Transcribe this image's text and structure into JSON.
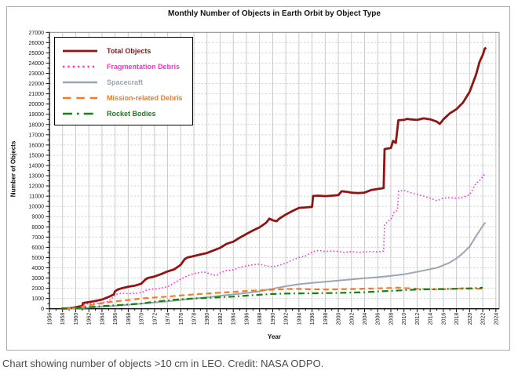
{
  "figure": {
    "title": "Monthly Number of Objects in Earth Orbit by Object Type",
    "caption": "Chart showing number of objects >10 cm in LEO. Credit: NASA ODPO."
  },
  "chart_data": {
    "type": "line",
    "title": "Monthly Number of Objects in Earth Orbit by Object Type",
    "xlabel": "Year",
    "ylabel": "Number of Objects",
    "x_range": [
      1956,
      2024.5
    ],
    "y_range": [
      0,
      27000
    ],
    "x_tick_first": 1956,
    "x_tick_last": 2024,
    "x_tick_step": 2,
    "y_tick_step": 1000,
    "grid": true,
    "legend_position": "top-left",
    "series": [
      {
        "id": "total",
        "name": "Total Objects",
        "color": "#8e1511",
        "style": "solid",
        "width": 2.8,
        "points": [
          [
            1957.8,
            10
          ],
          [
            1958,
            20
          ],
          [
            1959,
            35
          ],
          [
            1960,
            150
          ],
          [
            1960.8,
            250
          ],
          [
            1961,
            300
          ],
          [
            1961.1,
            560
          ],
          [
            1962,
            650
          ],
          [
            1963,
            760
          ],
          [
            1964,
            900
          ],
          [
            1965,
            1150
          ],
          [
            1965.8,
            1400
          ],
          [
            1966,
            1720
          ],
          [
            1966.5,
            1900
          ],
          [
            1967,
            2000
          ],
          [
            1968,
            2150
          ],
          [
            1969,
            2250
          ],
          [
            1970,
            2450
          ],
          [
            1970.6,
            2850
          ],
          [
            1971,
            3000
          ],
          [
            1972,
            3150
          ],
          [
            1973,
            3380
          ],
          [
            1974,
            3650
          ],
          [
            1975,
            3850
          ],
          [
            1976,
            4300
          ],
          [
            1976.6,
            4850
          ],
          [
            1977,
            5000
          ],
          [
            1978,
            5150
          ],
          [
            1979,
            5300
          ],
          [
            1980,
            5450
          ],
          [
            1981,
            5700
          ],
          [
            1982,
            5950
          ],
          [
            1983,
            6350
          ],
          [
            1984,
            6550
          ],
          [
            1985,
            6950
          ],
          [
            1986,
            7300
          ],
          [
            1987,
            7650
          ],
          [
            1988,
            7950
          ],
          [
            1989,
            8400
          ],
          [
            1989.5,
            8800
          ],
          [
            1990,
            8650
          ],
          [
            1990.6,
            8550
          ],
          [
            1991,
            8800
          ],
          [
            1992,
            9200
          ],
          [
            1993,
            9550
          ],
          [
            1994,
            9850
          ],
          [
            1995,
            9900
          ],
          [
            1996,
            9950
          ],
          [
            1996.15,
            11020
          ],
          [
            1997,
            11050
          ],
          [
            1998,
            11000
          ],
          [
            1999,
            11050
          ],
          [
            2000,
            11100
          ],
          [
            2000.5,
            11480
          ],
          [
            2001,
            11450
          ],
          [
            2002,
            11350
          ],
          [
            2003,
            11300
          ],
          [
            2004,
            11350
          ],
          [
            2005,
            11600
          ],
          [
            2006,
            11700
          ],
          [
            2006.9,
            11780
          ],
          [
            2007.05,
            15600
          ],
          [
            2007.5,
            15650
          ],
          [
            2008,
            15700
          ],
          [
            2008.35,
            16400
          ],
          [
            2008.75,
            16200
          ],
          [
            2009.15,
            18420
          ],
          [
            2010,
            18450
          ],
          [
            2010.5,
            18550
          ],
          [
            2011,
            18500
          ],
          [
            2012,
            18450
          ],
          [
            2013,
            18600
          ],
          [
            2014,
            18500
          ],
          [
            2015,
            18280
          ],
          [
            2015.45,
            18060
          ],
          [
            2015.7,
            18250
          ],
          [
            2016,
            18500
          ],
          [
            2017,
            19100
          ],
          [
            2018,
            19500
          ],
          [
            2019,
            20150
          ],
          [
            2020,
            21200
          ],
          [
            2021,
            22900
          ],
          [
            2021.5,
            24100
          ],
          [
            2022,
            24800
          ],
          [
            2022.3,
            25400
          ],
          [
            2022.5,
            25520
          ]
        ]
      },
      {
        "id": "fragmentation",
        "name": "Fragmentation Debris",
        "color": "#ff2fd2",
        "style": "dotted",
        "width": 1.6,
        "points": [
          [
            1958,
            0
          ],
          [
            1959,
            20
          ],
          [
            1960,
            50
          ],
          [
            1961,
            120
          ],
          [
            1961.2,
            420
          ],
          [
            1962,
            480
          ],
          [
            1963,
            530
          ],
          [
            1964,
            600
          ],
          [
            1965,
            720
          ],
          [
            1965.9,
            1250
          ],
          [
            1966,
            1400
          ],
          [
            1967,
            1520
          ],
          [
            1968,
            1480
          ],
          [
            1969,
            1520
          ],
          [
            1970,
            1580
          ],
          [
            1970.7,
            1800
          ],
          [
            1971,
            1850
          ],
          [
            1972,
            1930
          ],
          [
            1973,
            2020
          ],
          [
            1974,
            2150
          ],
          [
            1975,
            2520
          ],
          [
            1976,
            2900
          ],
          [
            1977,
            3200
          ],
          [
            1978,
            3450
          ],
          [
            1979,
            3550
          ],
          [
            1979.5,
            3600
          ],
          [
            1980,
            3500
          ],
          [
            1981,
            3300
          ],
          [
            1981.5,
            3250
          ],
          [
            1982,
            3500
          ],
          [
            1983,
            3750
          ],
          [
            1984,
            3800
          ],
          [
            1985,
            4050
          ],
          [
            1986,
            4200
          ],
          [
            1987,
            4300
          ],
          [
            1988,
            4350
          ],
          [
            1989,
            4200
          ],
          [
            1990,
            4100
          ],
          [
            1991,
            4250
          ],
          [
            1992,
            4450
          ],
          [
            1993,
            4750
          ],
          [
            1994,
            5000
          ],
          [
            1995,
            5150
          ],
          [
            1996.2,
            5600
          ],
          [
            1997,
            5700
          ],
          [
            1998,
            5600
          ],
          [
            1999,
            5650
          ],
          [
            2000,
            5600
          ],
          [
            2001,
            5500
          ],
          [
            2002,
            5600
          ],
          [
            2003,
            5500
          ],
          [
            2004,
            5550
          ],
          [
            2005,
            5600
          ],
          [
            2006,
            5550
          ],
          [
            2006.9,
            5650
          ],
          [
            2007.05,
            8200
          ],
          [
            2007.6,
            8580
          ],
          [
            2008,
            8700
          ],
          [
            2008.5,
            9450
          ],
          [
            2009,
            9600
          ],
          [
            2009.2,
            11500
          ],
          [
            2010,
            11550
          ],
          [
            2011,
            11350
          ],
          [
            2012,
            11150
          ],
          [
            2013,
            11000
          ],
          [
            2014,
            10800
          ],
          [
            2015,
            10550
          ],
          [
            2016,
            10800
          ],
          [
            2017,
            10850
          ],
          [
            2018,
            10800
          ],
          [
            2019,
            10900
          ],
          [
            2020,
            11150
          ],
          [
            2020.7,
            11900
          ],
          [
            2021,
            12300
          ],
          [
            2021.5,
            12500
          ],
          [
            2022,
            12900
          ],
          [
            2022.4,
            13250
          ]
        ]
      },
      {
        "id": "spacecraft",
        "name": "Spacecraft",
        "color": "#9aa6b6",
        "style": "solid",
        "width": 2,
        "points": [
          [
            1957.8,
            5
          ],
          [
            1960,
            40
          ],
          [
            1962,
            110
          ],
          [
            1964,
            190
          ],
          [
            1966,
            290
          ],
          [
            1968,
            390
          ],
          [
            1970,
            490
          ],
          [
            1972,
            610
          ],
          [
            1974,
            730
          ],
          [
            1976,
            860
          ],
          [
            1978,
            990
          ],
          [
            1980,
            1120
          ],
          [
            1982,
            1270
          ],
          [
            1984,
            1400
          ],
          [
            1986,
            1540
          ],
          [
            1988,
            1700
          ],
          [
            1990,
            1950
          ],
          [
            1992,
            2200
          ],
          [
            1994,
            2400
          ],
          [
            1996,
            2520
          ],
          [
            1998,
            2640
          ],
          [
            2000,
            2760
          ],
          [
            2002,
            2870
          ],
          [
            2004,
            2980
          ],
          [
            2006,
            3080
          ],
          [
            2008,
            3220
          ],
          [
            2010,
            3360
          ],
          [
            2012,
            3600
          ],
          [
            2014,
            3870
          ],
          [
            2015,
            4000
          ],
          [
            2016,
            4250
          ],
          [
            2017,
            4520
          ],
          [
            2018,
            4920
          ],
          [
            2019,
            5440
          ],
          [
            2020,
            6080
          ],
          [
            2021,
            7100
          ],
          [
            2022,
            8100
          ],
          [
            2022.4,
            8430
          ]
        ]
      },
      {
        "id": "mission-debris",
        "name": "Mission-related Debris",
        "color": "#f87a1c",
        "style": "dashed",
        "width": 2.2,
        "points": [
          [
            1958,
            5
          ],
          [
            1960,
            80
          ],
          [
            1962,
            330
          ],
          [
            1964,
            540
          ],
          [
            1966,
            730
          ],
          [
            1968,
            850
          ],
          [
            1970,
            1000
          ],
          [
            1972,
            1100
          ],
          [
            1974,
            1190
          ],
          [
            1976,
            1300
          ],
          [
            1978,
            1400
          ],
          [
            1980,
            1490
          ],
          [
            1982,
            1570
          ],
          [
            1984,
            1650
          ],
          [
            1986,
            1730
          ],
          [
            1988,
            1800
          ],
          [
            1990,
            1860
          ],
          [
            1992,
            1920
          ],
          [
            1994,
            1940
          ],
          [
            1996,
            1900
          ],
          [
            1998,
            1880
          ],
          [
            2000,
            1900
          ],
          [
            2002,
            1930
          ],
          [
            2004,
            1960
          ],
          [
            2006,
            1990
          ],
          [
            2008,
            2030
          ],
          [
            2009,
            2060
          ],
          [
            2010,
            2020
          ],
          [
            2012,
            1950
          ],
          [
            2014,
            1900
          ],
          [
            2015,
            1890
          ],
          [
            2016,
            1900
          ],
          [
            2018,
            1960
          ],
          [
            2019,
            2000
          ],
          [
            2020,
            1960
          ],
          [
            2021,
            1960
          ],
          [
            2022,
            1980
          ]
        ]
      },
      {
        "id": "rocket-bodies",
        "name": "Rocket Bodies",
        "color": "#128212",
        "style": "dashdot",
        "width": 2.2,
        "points": [
          [
            1957.8,
            5
          ],
          [
            1960,
            60
          ],
          [
            1962,
            150
          ],
          [
            1964,
            260
          ],
          [
            1966,
            340
          ],
          [
            1968,
            410
          ],
          [
            1970,
            510
          ],
          [
            1971,
            600
          ],
          [
            1972,
            690
          ],
          [
            1974,
            810
          ],
          [
            1976,
            930
          ],
          [
            1978,
            1000
          ],
          [
            1980,
            1060
          ],
          [
            1982,
            1130
          ],
          [
            1984,
            1190
          ],
          [
            1986,
            1280
          ],
          [
            1988,
            1370
          ],
          [
            1990,
            1440
          ],
          [
            1992,
            1490
          ],
          [
            1994,
            1500
          ],
          [
            1996,
            1510
          ],
          [
            1998,
            1530
          ],
          [
            2000,
            1550
          ],
          [
            2002,
            1580
          ],
          [
            2004,
            1620
          ],
          [
            2006,
            1690
          ],
          [
            2008,
            1750
          ],
          [
            2010,
            1810
          ],
          [
            2012,
            1880
          ],
          [
            2014,
            1910
          ],
          [
            2016,
            1930
          ],
          [
            2018,
            1950
          ],
          [
            2020,
            1990
          ],
          [
            2021,
            2020
          ],
          [
            2022,
            2050
          ]
        ]
      }
    ]
  }
}
